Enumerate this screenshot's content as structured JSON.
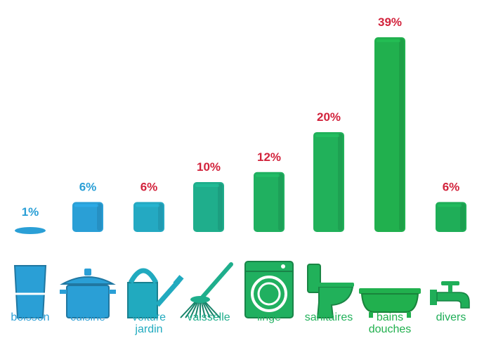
{
  "chart_data": {
    "type": "bar",
    "title": "",
    "xlabel": "",
    "ylabel": "",
    "ylim": [
      0,
      39
    ],
    "categories": [
      {
        "label_lines": [
          "boisson"
        ],
        "icon": "glass-icon"
      },
      {
        "label_lines": [
          "cuisine"
        ],
        "icon": "cooking-pot-icon"
      },
      {
        "label_lines": [
          "voiture",
          "jardin"
        ],
        "icon": "watering-can-icon"
      },
      {
        "label_lines": [
          "vaisselle"
        ],
        "icon": "brush-icon"
      },
      {
        "label_lines": [
          "linge"
        ],
        "icon": "washing-machine-icon"
      },
      {
        "label_lines": [
          "sanitaires"
        ],
        "icon": "toilet-icon"
      },
      {
        "label_lines": [
          "bains",
          "douches"
        ],
        "icon": "bathtub-icon"
      },
      {
        "label_lines": [
          "divers"
        ],
        "icon": "faucet-icon"
      }
    ],
    "values": [
      1,
      6,
      6,
      10,
      12,
      20,
      39,
      6
    ],
    "value_labels": [
      "1%",
      "6%",
      "6%",
      "10%",
      "12%",
      "20%",
      "39%",
      "6%"
    ],
    "bar_colors": [
      "#2a9fd6",
      "#2a9fd6",
      "#24a9c2",
      "#1fae8c",
      "#20b060",
      "#21b15a",
      "#21b04e",
      "#1fae58"
    ],
    "value_label_colors": [
      "#2a9fd6",
      "#2a9fd6",
      "#d2233c",
      "#d2233c",
      "#d2233c",
      "#d2233c",
      "#d2233c",
      "#d2233c"
    ],
    "category_label_colors": [
      "#2a9fd6",
      "#2a9fd6",
      "#21aabf",
      "#1fae8c",
      "#20b060",
      "#21b15a",
      "#21b04e",
      "#1fae58"
    ]
  }
}
